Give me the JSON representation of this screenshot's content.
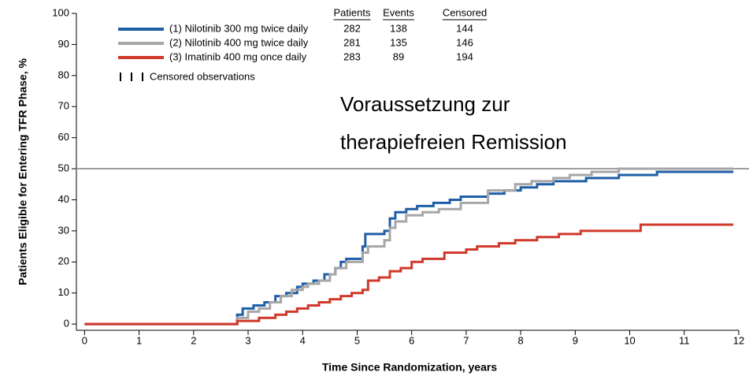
{
  "chart_data": {
    "type": "line",
    "step": "post",
    "x_label": "Time Since Randomization, years",
    "y_label": "Patients Eligible for Entering TFR Phase, %",
    "xlim": [
      -0.15,
      12
    ],
    "ylim": [
      -2,
      100
    ],
    "xticks": [
      0,
      1,
      2,
      3,
      4,
      5,
      6,
      7,
      8,
      9,
      10,
      11,
      12
    ],
    "yticks": [
      0,
      10,
      20,
      30,
      40,
      50,
      60,
      70,
      80,
      90,
      100
    ],
    "reference_line": {
      "value": 50,
      "color": "#a0a0a0"
    },
    "annotation": [
      "Voraussetzung zur",
      "therapiefreien Remission"
    ],
    "censor_legend": "Censored observations",
    "table": {
      "columns": [
        "Patients",
        "Events",
        "Censored"
      ],
      "rows": [
        [
          282,
          138,
          144
        ],
        [
          281,
          135,
          146
        ],
        [
          283,
          89,
          194
        ]
      ]
    },
    "series": [
      {
        "name": "(1) Nilotinib 300 mg twice daily",
        "color": "#1f5fa6",
        "x": [
          0,
          2.78,
          2.8,
          2.9,
          3.1,
          3.3,
          3.5,
          3.7,
          3.9,
          4.0,
          4.2,
          4.4,
          4.6,
          4.7,
          4.8,
          5.05,
          5.1,
          5.15,
          5.5,
          5.6,
          5.7,
          5.9,
          6.1,
          6.4,
          6.7,
          6.9,
          7.4,
          7.7,
          8.0,
          8.3,
          8.6,
          9.2,
          9.8,
          10.5,
          11.9
        ],
        "values": [
          0,
          0,
          3,
          5,
          6,
          7,
          9,
          10,
          12,
          13,
          14,
          16,
          18,
          20,
          21,
          21,
          25,
          29,
          30,
          34,
          36,
          37,
          38,
          39,
          40,
          41,
          42,
          43,
          44,
          45,
          46,
          47,
          48,
          49,
          49
        ]
      },
      {
        "name": "(2) Nilotinib 400 mg twice daily",
        "color": "#a6a6a6",
        "x": [
          0,
          2.78,
          2.8,
          3.0,
          3.2,
          3.4,
          3.6,
          3.8,
          4.0,
          4.1,
          4.3,
          4.5,
          4.6,
          4.8,
          5.05,
          5.1,
          5.2,
          5.5,
          5.6,
          5.7,
          5.9,
          6.2,
          6.5,
          6.9,
          7.4,
          7.9,
          8.2,
          8.6,
          8.9,
          9.3,
          9.8,
          11.9
        ],
        "values": [
          0,
          0,
          2,
          4,
          5,
          7,
          9,
          11,
          12,
          13,
          14,
          16,
          18,
          20,
          20,
          23,
          25,
          27,
          31,
          33,
          35,
          36,
          37,
          39,
          43,
          45,
          46,
          47,
          48,
          49,
          50,
          50
        ]
      },
      {
        "name": "(3) Imatinib 400 mg once daily",
        "color": "#d0392b",
        "x": [
          0,
          2.78,
          2.8,
          3.2,
          3.5,
          3.7,
          3.9,
          4.1,
          4.3,
          4.5,
          4.7,
          4.9,
          5.1,
          5.2,
          5.4,
          5.6,
          5.8,
          6.0,
          6.2,
          6.6,
          7.0,
          7.2,
          7.6,
          7.9,
          8.3,
          8.7,
          9.1,
          10.2,
          11.9
        ],
        "values": [
          0,
          0,
          1,
          2,
          3,
          4,
          5,
          6,
          7,
          8,
          9,
          10,
          11,
          14,
          15,
          17,
          18,
          20,
          21,
          23,
          24,
          25,
          26,
          27,
          28,
          29,
          30,
          32,
          32
        ]
      }
    ]
  }
}
